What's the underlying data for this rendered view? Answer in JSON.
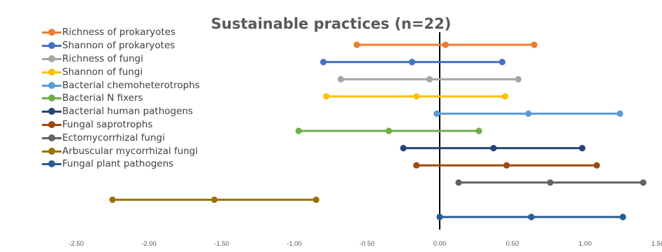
{
  "chart_data": {
    "type": "line",
    "title": "Sustainable practices (n=22)",
    "xlabel": "",
    "ylabel": "",
    "xlim": [
      -2.5,
      1.5
    ],
    "x_ticks": [
      "-2.50",
      "-2.00",
      "-1.50",
      "-1.00",
      "-0.50",
      "0.00",
      "0.50",
      "1.00",
      "1.50"
    ],
    "grid": false,
    "legend_position": "top-left",
    "zero_line": 0,
    "series": [
      {
        "name": "Richness of prokaryotes",
        "color": "#ED7D31",
        "values": [
          -0.57,
          0.04,
          0.65
        ]
      },
      {
        "name": "Shannon of prokaryotes",
        "color": "#4472C4",
        "values": [
          -0.8,
          -0.19,
          0.43
        ]
      },
      {
        "name": "Richness of fungi",
        "color": "#A5A5A5",
        "values": [
          -0.68,
          -0.07,
          0.54
        ]
      },
      {
        "name": "Shannon of fungi",
        "color": "#FFC000",
        "values": [
          -0.78,
          -0.16,
          0.45
        ]
      },
      {
        "name": "Bacterial chemoheterotrophs",
        "color": "#5B9BD5",
        "values": [
          -0.02,
          0.61,
          1.24
        ]
      },
      {
        "name": "Bacterial N fixers",
        "color": "#70AD47",
        "values": [
          -0.97,
          -0.35,
          0.27
        ]
      },
      {
        "name": "Bacterial human pathogens",
        "color": "#264478",
        "values": [
          -0.25,
          0.37,
          0.98
        ]
      },
      {
        "name": "Fungal saprotrophs",
        "color": "#9E480E",
        "values": [
          -0.16,
          0.46,
          1.08
        ]
      },
      {
        "name": "Ectomycorrhizal fungi",
        "color": "#636363",
        "values": [
          0.13,
          0.76,
          1.4
        ]
      },
      {
        "name": "Arbuscular mycorrhizal fungi",
        "color": "#997300",
        "values": [
          -2.25,
          -1.55,
          -0.85
        ]
      },
      {
        "name": "Fungal plant pathogens",
        "color": "#255E91",
        "values": [
          0.0,
          0.63,
          1.26
        ]
      }
    ]
  }
}
